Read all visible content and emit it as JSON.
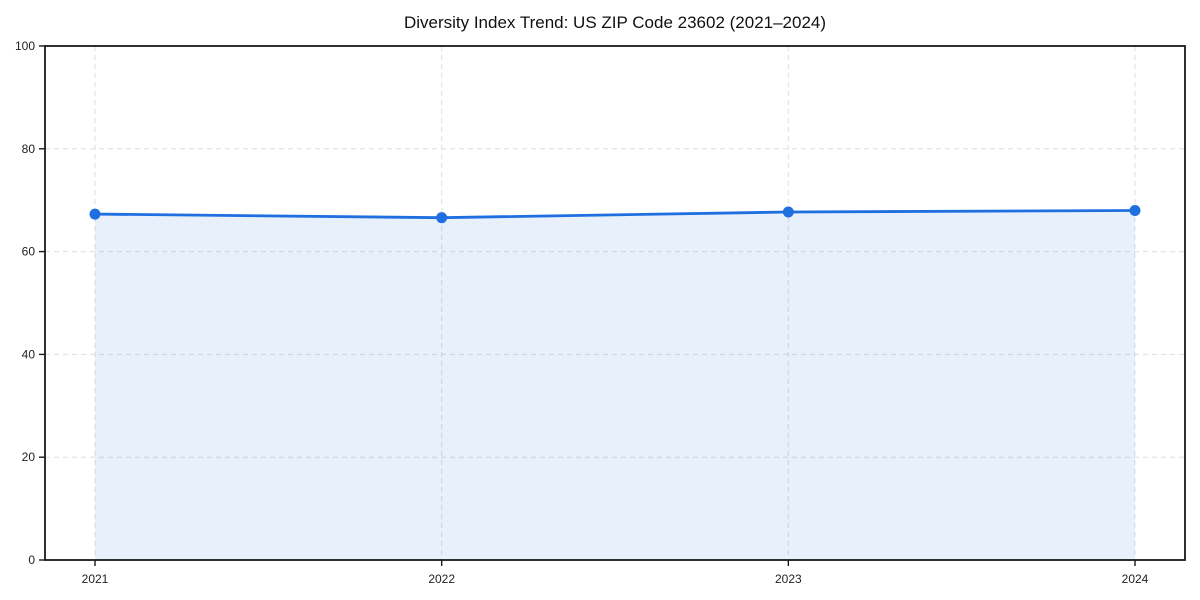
{
  "chart_data": {
    "type": "area",
    "title": "Diversity Index Trend: US ZIP Code 23602 (2021–2024)",
    "categories": [
      "2021",
      "2022",
      "2023",
      "2024"
    ],
    "x": [
      2021,
      2022,
      2023,
      2024
    ],
    "series": [
      {
        "name": "Diversity Index",
        "values": [
          67.3,
          66.6,
          67.7,
          68.0
        ]
      }
    ],
    "xlabel": "",
    "ylabel": "",
    "ylim": [
      0,
      100
    ],
    "yticks": [
      0,
      20,
      40,
      60,
      80,
      100
    ],
    "xticks": [
      "2021",
      "2022",
      "2023",
      "2024"
    ],
    "grid": true,
    "grid_style": "dashed",
    "legend": false,
    "colors": {
      "line": "#1f6fe0",
      "marker": "#1f6fe0",
      "fill": "#1f6fe0",
      "fill_opacity": 0.1,
      "grid": "#dedede",
      "frame": "#1a1a1a",
      "tick_label": "#222222",
      "title": "#111111",
      "background": "#ffffff"
    }
  }
}
